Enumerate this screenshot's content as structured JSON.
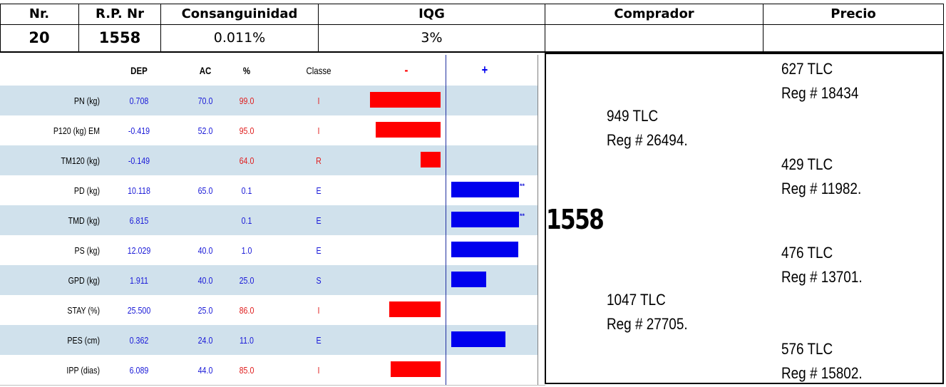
{
  "header": {
    "labels": {
      "nr": "Nr.",
      "rp_nr": "R.P. Nr",
      "consanguinidad": "Consanguinidad",
      "iqg": "IQG",
      "comprador": "Comprador",
      "precio": "Precio"
    },
    "values": {
      "nr": "20",
      "rp_nr": "1558",
      "consanguinidad": "0.011%",
      "iqg": "3%",
      "comprador": "",
      "precio": ""
    }
  },
  "trait_table": {
    "columns": {
      "dep": "DEP",
      "ac": "AC",
      "pct": "%",
      "classe": "Classe",
      "minus": "-",
      "plus": "+"
    },
    "rows": [
      {
        "name": "PN (kg)",
        "dep": "0.708",
        "ac": "70.0",
        "pct": "99.0",
        "classe": "I",
        "bar": -0.98,
        "stars": ""
      },
      {
        "name": "P120 (kg) EM",
        "dep": "-0.419",
        "ac": "52.0",
        "pct": "95.0",
        "classe": "I",
        "bar": -0.9,
        "stars": ""
      },
      {
        "name": "TM120 (kg)",
        "dep": "-0.149",
        "ac": "",
        "pct": "64.0",
        "classe": "R",
        "bar": -0.28,
        "stars": ""
      },
      {
        "name": "PD (kg)",
        "dep": "10.118",
        "ac": "65.0",
        "pct": "0.1",
        "classe": "E",
        "bar": 1.0,
        "stars": "**"
      },
      {
        "name": "TMD (kg)",
        "dep": "6.815",
        "ac": "",
        "pct": "0.1",
        "classe": "E",
        "bar": 1.0,
        "stars": "**"
      },
      {
        "name": "PS (kg)",
        "dep": "12.029",
        "ac": "40.0",
        "pct": "1.0",
        "classe": "E",
        "bar": 0.99,
        "stars": ""
      },
      {
        "name": "GPD (kg)",
        "dep": "1.911",
        "ac": "40.0",
        "pct": "25.0",
        "classe": "S",
        "bar": 0.52,
        "stars": ""
      },
      {
        "name": "STAY (%)",
        "dep": "25.500",
        "ac": "25.0",
        "pct": "86.0",
        "classe": "I",
        "bar": -0.71,
        "stars": ""
      },
      {
        "name": "PES (cm)",
        "dep": "0.362",
        "ac": "24.0",
        "pct": "11.0",
        "classe": "E",
        "bar": 0.8,
        "stars": ""
      },
      {
        "name": "IPP (dias)",
        "dep": "6.089",
        "ac": "44.0",
        "pct": "85.0",
        "classe": "I",
        "bar": -0.69,
        "stars": ""
      }
    ]
  },
  "buyer_panel": {
    "animal_id": "1558",
    "offers": [
      {
        "price": "627 TLC",
        "reg": "Reg # 18434"
      },
      {
        "price": "949 TLC",
        "reg": "Reg # 26494."
      },
      {
        "price": "429 TLC",
        "reg": "Reg # 11982."
      },
      {
        "price": "476 TLC",
        "reg": "Reg # 13701."
      },
      {
        "price": "1047 TLC",
        "reg": "Reg # 27705."
      },
      {
        "price": "576 TLC",
        "reg": "Reg # 15802."
      }
    ]
  },
  "colors": {
    "negative_bar": "#ff0000",
    "positive_bar": "#0000ee",
    "row_shade": "#d0e1ec",
    "dep_text": "#1a1ad8",
    "pct_negative_text": "#e02020",
    "pct_positive_text": "#1a1ad8"
  }
}
